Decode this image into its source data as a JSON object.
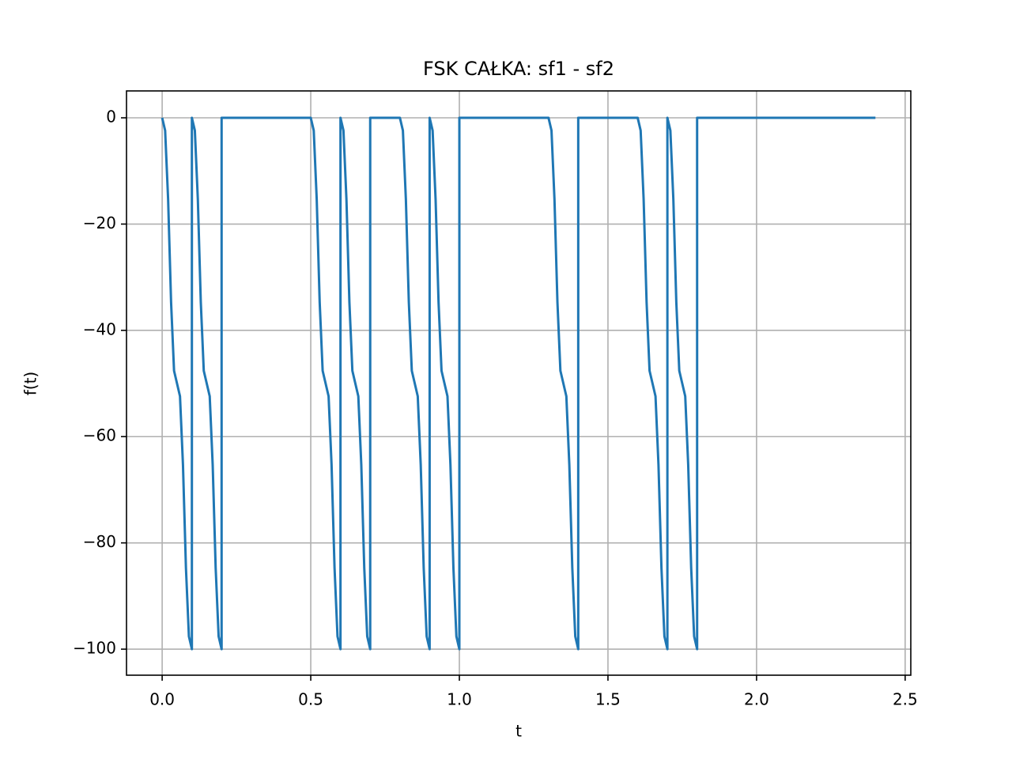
{
  "chart_data": {
    "type": "line",
    "title": "FSK CAŁKA: sf1 - sf2",
    "x_label": "t",
    "y_label": "f(t)",
    "color": "#1f77b4",
    "grid": true,
    "xlim": [
      -0.12,
      2.519
    ],
    "ylim": [
      -104.9,
      5.06
    ],
    "xticks": [
      {
        "value": 0,
        "label": "0.0"
      },
      0.5,
      {
        "value": 1,
        "label": "1.0"
      },
      1.5,
      {
        "value": 2,
        "label": "2.0"
      },
      2.5
    ],
    "yticks": [
      {
        "value": -100,
        "label": "−100"
      },
      {
        "value": -80,
        "label": "−80"
      },
      {
        "value": -60,
        "label": "−60"
      },
      {
        "value": -40,
        "label": "−40"
      },
      {
        "value": -20,
        "label": "−20"
      },
      0
    ],
    "x": [
      0,
      0.01,
      0.02,
      0.03,
      0.04,
      0.05,
      0.06,
      0.07,
      0.08,
      0.09,
      0.1,
      0.1,
      0.11,
      0.12,
      0.13,
      0.14,
      0.15,
      0.16,
      0.17,
      0.18,
      0.19,
      0.2,
      0.2,
      0.5,
      0.51,
      0.52,
      0.53,
      0.54,
      0.55,
      0.56,
      0.57,
      0.58,
      0.59,
      0.6,
      0.6,
      0.61,
      0.62,
      0.63,
      0.64,
      0.65,
      0.66,
      0.67,
      0.68,
      0.69,
      0.7,
      0.7,
      0.8,
      0.81,
      0.82,
      0.83,
      0.84,
      0.85,
      0.86,
      0.87,
      0.88,
      0.89,
      0.9,
      0.9,
      0.91,
      0.92,
      0.93,
      0.94,
      0.95,
      0.96,
      0.97,
      0.98,
      0.99,
      1.0,
      1.0,
      1.3,
      1.31,
      1.32,
      1.33,
      1.34,
      1.35,
      1.36,
      1.37,
      1.38,
      1.39,
      1.4,
      1.4,
      1.6,
      1.61,
      1.62,
      1.63,
      1.64,
      1.65,
      1.66,
      1.67,
      1.68,
      1.69,
      1.7,
      1.7,
      1.71,
      1.72,
      1.73,
      1.74,
      1.75,
      1.76,
      1.77,
      1.78,
      1.79,
      1.8,
      1.8,
      2.4
    ],
    "values": [
      0,
      -2.4,
      -15.3,
      -34.7,
      -47.6,
      -50,
      -52.4,
      -65.3,
      -84.7,
      -97.6,
      -100,
      0,
      -2.4,
      -15.3,
      -34.7,
      -47.6,
      -50,
      -52.4,
      -65.3,
      -84.7,
      -97.6,
      -100,
      0,
      0,
      -2.4,
      -15.3,
      -34.7,
      -47.6,
      -50,
      -52.4,
      -65.3,
      -84.7,
      -97.6,
      -100,
      0,
      -2.4,
      -15.3,
      -34.7,
      -47.6,
      -50,
      -52.4,
      -65.3,
      -84.7,
      -97.6,
      -100,
      0,
      0,
      -2.4,
      -15.3,
      -34.7,
      -47.6,
      -50,
      -52.4,
      -65.3,
      -84.7,
      -97.6,
      -100,
      0,
      -2.4,
      -15.3,
      -34.7,
      -47.6,
      -50,
      -52.4,
      -65.3,
      -84.7,
      -97.6,
      -100,
      0,
      0,
      -2.4,
      -15.3,
      -34.7,
      -47.6,
      -50,
      -52.4,
      -65.3,
      -84.7,
      -97.6,
      -100,
      0,
      0,
      -2.4,
      -15.3,
      -34.7,
      -47.6,
      -50,
      -52.4,
      -65.3,
      -84.7,
      -97.6,
      -100,
      0,
      -2.4,
      -15.3,
      -34.7,
      -47.6,
      -50,
      -52.4,
      -65.3,
      -84.7,
      -97.6,
      -100,
      0,
      0
    ]
  }
}
